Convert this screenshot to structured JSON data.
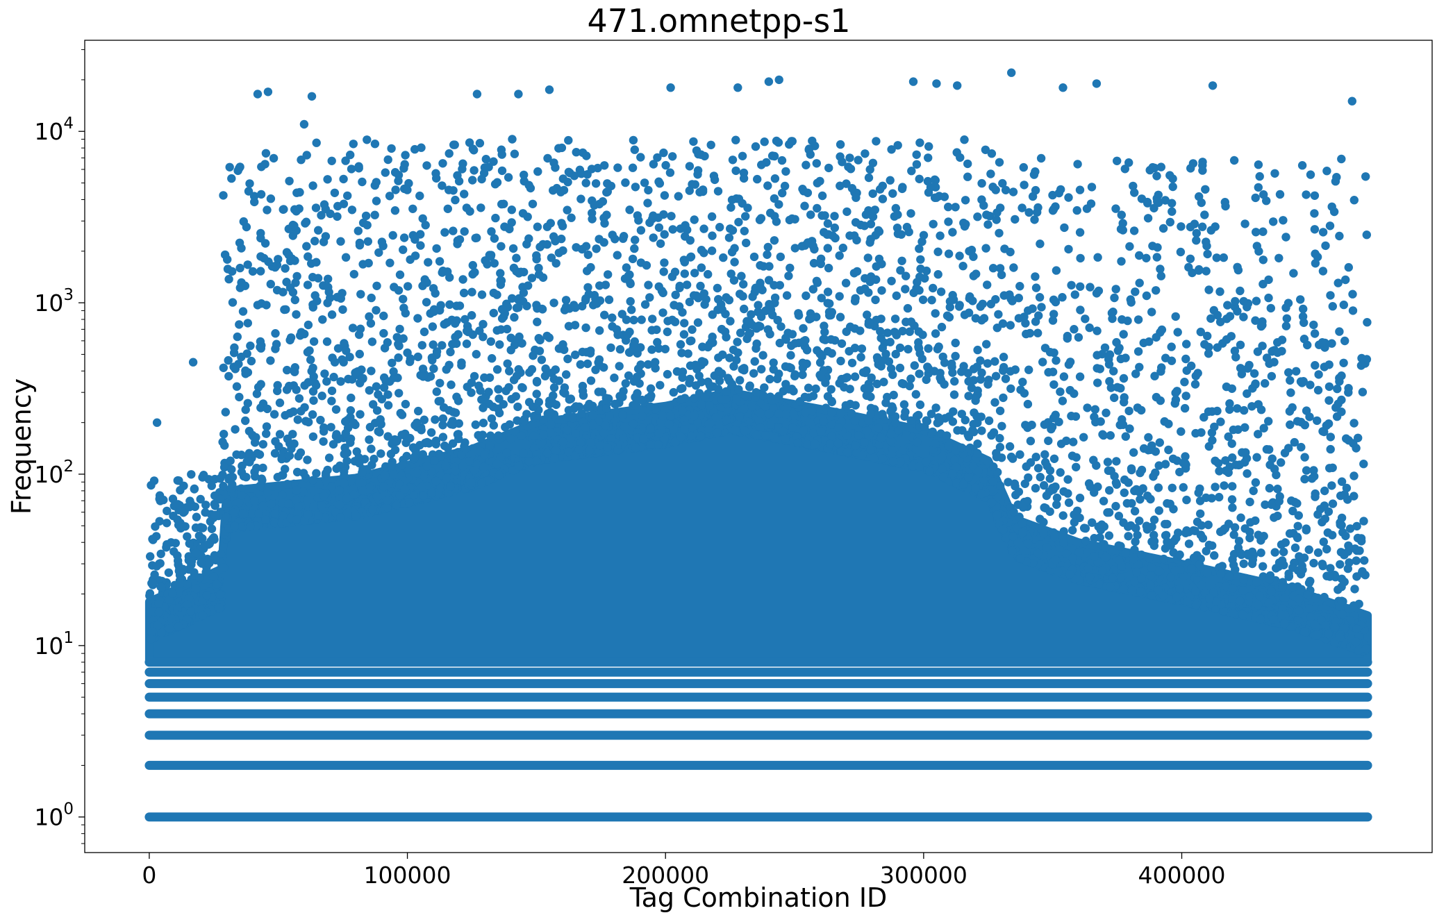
{
  "chart_data": {
    "type": "scatter",
    "title": "471.omnetpp-s1",
    "xlabel": "Tag Combination ID",
    "ylabel": "Frequency",
    "xlim": [
      -25000,
      497000
    ],
    "ylim": [
      0.62,
      34000
    ],
    "yscale": "log",
    "grid": false,
    "legend": "none",
    "marker_color": "#1f77b4",
    "x_ticks": [
      {
        "value": 0,
        "label": "0"
      },
      {
        "value": 100000,
        "label": "100000"
      },
      {
        "value": 200000,
        "label": "200000"
      },
      {
        "value": 300000,
        "label": "300000"
      },
      {
        "value": 400000,
        "label": "400000"
      }
    ],
    "y_ticks": [
      {
        "value": 1,
        "base": "10",
        "exp": "0"
      },
      {
        "value": 10,
        "base": "10",
        "exp": "1"
      },
      {
        "value": 100,
        "base": "10",
        "exp": "2"
      },
      {
        "value": 1000,
        "base": "10",
        "exp": "3"
      },
      {
        "value": 10000,
        "base": "10",
        "exp": "4"
      }
    ],
    "x_range_points": [
      0,
      472000
    ],
    "discrete_levels": [
      1,
      2,
      3,
      4,
      5,
      6,
      7,
      8
    ],
    "density_profile": [
      {
        "x": 0,
        "upper": 18
      },
      {
        "x": 28000,
        "upper": 28
      },
      {
        "x": 30000,
        "upper": 80
      },
      {
        "x": 80000,
        "upper": 95
      },
      {
        "x": 125000,
        "upper": 140
      },
      {
        "x": 150000,
        "upper": 200
      },
      {
        "x": 200000,
        "upper": 250
      },
      {
        "x": 225000,
        "upper": 300
      },
      {
        "x": 260000,
        "upper": 240
      },
      {
        "x": 300000,
        "upper": 180
      },
      {
        "x": 325000,
        "upper": 120
      },
      {
        "x": 335000,
        "upper": 55
      },
      {
        "x": 360000,
        "upper": 40
      },
      {
        "x": 400000,
        "upper": 30
      },
      {
        "x": 440000,
        "upper": 22
      },
      {
        "x": 472000,
        "upper": 15
      }
    ],
    "notable_points": [
      {
        "x": 334000,
        "y": 22000
      },
      {
        "x": 244000,
        "y": 20000
      },
      {
        "x": 240000,
        "y": 19500
      },
      {
        "x": 296000,
        "y": 19500
      },
      {
        "x": 305000,
        "y": 19000
      },
      {
        "x": 367000,
        "y": 19000
      },
      {
        "x": 313000,
        "y": 18500
      },
      {
        "x": 412000,
        "y": 18500
      },
      {
        "x": 354000,
        "y": 18000
      },
      {
        "x": 228000,
        "y": 18000
      },
      {
        "x": 202000,
        "y": 18000
      },
      {
        "x": 155000,
        "y": 17500
      },
      {
        "x": 46000,
        "y": 17000
      },
      {
        "x": 42000,
        "y": 16500
      },
      {
        "x": 127000,
        "y": 16500
      },
      {
        "x": 143000,
        "y": 16500
      },
      {
        "x": 63000,
        "y": 16000
      },
      {
        "x": 466000,
        "y": 15000
      },
      {
        "x": 60000,
        "y": 11000
      },
      {
        "x": 3000,
        "y": 200
      },
      {
        "x": 17000,
        "y": 450
      }
    ]
  }
}
